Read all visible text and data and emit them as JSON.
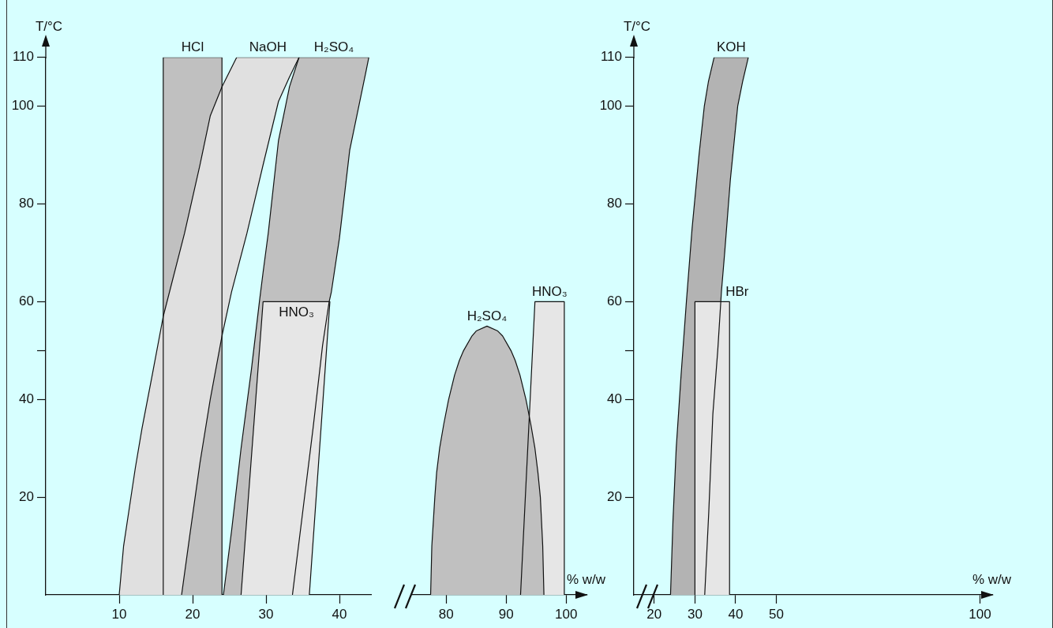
{
  "chart_data": [
    {
      "type": "area",
      "ylabel": "T/°C",
      "xlim": [
        0,
        44.3
      ],
      "xticks": [
        10,
        20,
        30,
        40
      ],
      "ylim": [
        0,
        110
      ],
      "yticks": [
        20,
        40,
        {
          "value": 50,
          "label": null
        },
        60,
        80,
        100,
        110
      ],
      "series": [
        {
          "name": "HCl",
          "color": "#c0c0c0",
          "x": [
            16,
            16,
            24,
            24
          ],
          "values": [
            0,
            110,
            110,
            0
          ]
        },
        {
          "name": "NaOH",
          "color": "#e0e0e0",
          "x": [
            10.0,
            10.6,
            11.3,
            12.2,
            13.1,
            14.5,
            16.0,
            18.9,
            21.0,
            22.4,
            24.0,
            26.0,
            34.5,
            33.2,
            31.7,
            29.6,
            27.4,
            25.3,
            24.0,
            22.4,
            21.0,
            19.6,
            18.5
          ],
          "values": [
            0,
            10,
            17,
            26,
            34,
            45,
            57,
            74,
            88,
            98,
            104,
            110,
            110,
            106,
            101,
            88,
            74,
            62,
            53,
            40,
            27,
            12,
            0
          ]
        },
        {
          "name": "H₂SO₄",
          "color": "#c0c0c0",
          "x": [
            24.2,
            25.3,
            26.6,
            28.0,
            29.1,
            29.6,
            30.3,
            31.7,
            33.2,
            34.5,
            44.0,
            43.6,
            41.4,
            40.0,
            38.9,
            38.6,
            37.7,
            36.4,
            35.0,
            33.6
          ],
          "values": [
            0,
            13,
            30,
            46,
            60,
            66,
            74,
            93,
            104,
            110,
            110,
            107,
            91,
            73,
            62,
            60,
            51,
            34,
            17,
            0
          ]
        },
        {
          "name": "HNO₃",
          "color": "#e6e6e6",
          "x": [
            26.6,
            29.6,
            38.7,
            35.9
          ],
          "values": [
            0,
            60,
            60,
            0
          ]
        }
      ]
    },
    {
      "type": "area",
      "xlabel": "% w/w",
      "xlim": [
        74.3,
        103.4
      ],
      "xticks": [
        80,
        90,
        100
      ],
      "ylim": [
        0,
        110
      ],
      "tick_labels": "x",
      "series": [
        {
          "name": "HNO₃",
          "color": "#e6e6e6",
          "x": [
            92.4,
            94.8,
            99.7,
            99.7
          ],
          "values": [
            0,
            60,
            60,
            0
          ]
        },
        {
          "name": "H₂SO₄",
          "color": "#c0c0c0",
          "x": [
            77.4,
            77.6,
            78.1,
            78.4,
            78.9,
            79.6,
            80.4,
            81.4,
            82.2,
            82.9,
            84.3,
            85.0,
            86.8,
            88.6,
            89.4,
            90.8,
            91.5,
            92.3,
            93.3,
            94.1,
            94.8,
            95.3,
            95.7,
            96.1,
            96.3
          ],
          "values": [
            0,
            10,
            20,
            25,
            30,
            35,
            40,
            45,
            48,
            50,
            53,
            54,
            55,
            54,
            53,
            50,
            48,
            45,
            40,
            35,
            30,
            25,
            20,
            10,
            0
          ]
        }
      ]
    },
    {
      "type": "area",
      "xlabel": "% w/w",
      "ylabel": "T/°C",
      "xlim": [
        15,
        103
      ],
      "xticks": [
        20,
        30,
        40,
        50,
        100
      ],
      "ylim": [
        0,
        110
      ],
      "yticks": [
        20,
        40,
        {
          "value": 50,
          "label": null
        },
        60,
        80,
        100,
        110
      ],
      "series": [
        {
          "name": "KOH",
          "color": "#b3b3b3",
          "x": [
            24.0,
            24.6,
            25.4,
            26.6,
            27.9,
            29.3,
            31.0,
            32.3,
            33.3,
            34.7,
            43.1,
            41.7,
            40.5,
            38.7,
            37.3,
            36.5,
            35.6,
            34.4,
            33.4,
            32.4
          ],
          "values": [
            0,
            15,
            30,
            45,
            60,
            75,
            90,
            100,
            105,
            110,
            110,
            105,
            100,
            85,
            70,
            62,
            50,
            37,
            17,
            0
          ]
        },
        {
          "name": "HBr",
          "color": "#e6e6e6",
          "x": [
            30,
            30,
            38.5,
            38.5
          ],
          "values": [
            0,
            60,
            60,
            0
          ]
        }
      ]
    }
  ]
}
